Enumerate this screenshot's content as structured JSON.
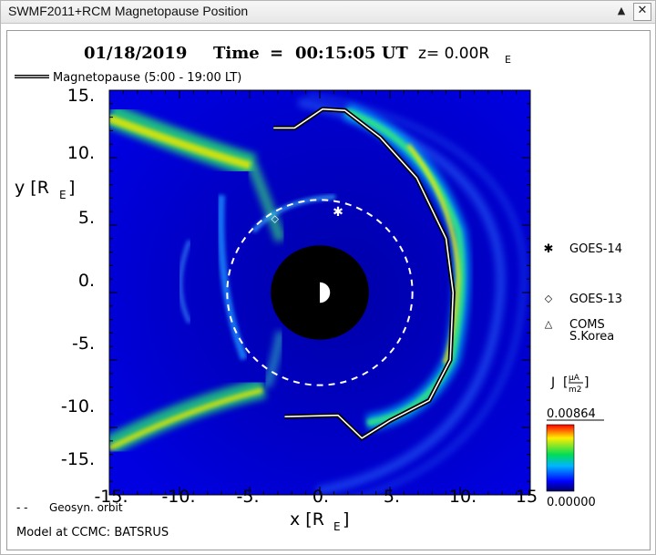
{
  "window": {
    "title": "SWMF2011+RCM Magnetopause Position",
    "collapse_glyph": "▲",
    "close_glyph": "✕"
  },
  "header": {
    "date": "01/18/2019",
    "time_label": "Time",
    "equals": "=",
    "time_value": "00:15:05 UT",
    "z_text": "z= 0.00R",
    "z_sub": "E"
  },
  "legend": {
    "magnetopause": "Magnetopause (5:00 - 19:00 LT)",
    "geosync": "Geosyn. orbit",
    "geosync_dash": "- -",
    "model": "Model at CCMC: BATSRUS"
  },
  "satellites": [
    {
      "name": "GOES-14",
      "symbol": "✱",
      "line2": ""
    },
    {
      "name": "GOES-13",
      "symbol": "◇",
      "line2": ""
    },
    {
      "name": "COMS",
      "symbol": "△",
      "line2": "S.Korea"
    }
  ],
  "colorbar": {
    "label": "J",
    "unit_num": "µA",
    "unit_den": "m2",
    "max_label": "0.00864",
    "min_label": "0.00000",
    "colors": [
      "#ff0000",
      "#ffee00",
      "#00dd55",
      "#00b5ff",
      "#0000ff",
      "#000066"
    ]
  },
  "chart_data": {
    "type": "heatmap",
    "title": "01/18/2019 Time = 00:15:05 UT z= 0.00RE",
    "xlabel": "x [R",
    "xlabel_sub": "E",
    "xlabel_end": "]",
    "ylabel": "y [R",
    "ylabel_sub": "E",
    "ylabel_end": "]",
    "xlim": [
      -15,
      15
    ],
    "ylim": [
      -15,
      15
    ],
    "x_ticks": [
      -15,
      -10,
      -5,
      0,
      5,
      10,
      15
    ],
    "x_tick_labels": [
      "-15.",
      "-10.",
      "-5.",
      "0.",
      "5.",
      "10.",
      "15"
    ],
    "y_ticks": [
      15,
      10,
      5,
      0,
      -5,
      -10,
      -15
    ],
    "y_tick_labels": [
      "15.",
      "10.",
      "5.",
      "0.",
      "-5.",
      "-10.",
      "-15."
    ],
    "colorbar_range": [
      0,
      0.00864
    ],
    "magnetopause": [
      [
        -3.3,
        12.2
      ],
      [
        -1.8,
        12.2
      ],
      [
        0.2,
        13.6
      ],
      [
        1.8,
        13.5
      ],
      [
        4.3,
        11.5
      ],
      [
        6.9,
        8.5
      ],
      [
        9.0,
        4.0
      ],
      [
        9.5,
        0
      ],
      [
        9.3,
        -5.0
      ],
      [
        7.8,
        -8.0
      ],
      [
        5.0,
        -9.5
      ],
      [
        3.0,
        -10.8
      ],
      [
        1.3,
        -9.1
      ],
      [
        -2.5,
        -9.2
      ]
    ],
    "geosync_radius": 6.6,
    "earth_radius": 3.5,
    "satellite_positions": [
      {
        "name": "GOES-14",
        "x": 1.3,
        "y": 6.0
      },
      {
        "name": "GOES-13",
        "x": -3.2,
        "y": 5.5
      }
    ]
  }
}
